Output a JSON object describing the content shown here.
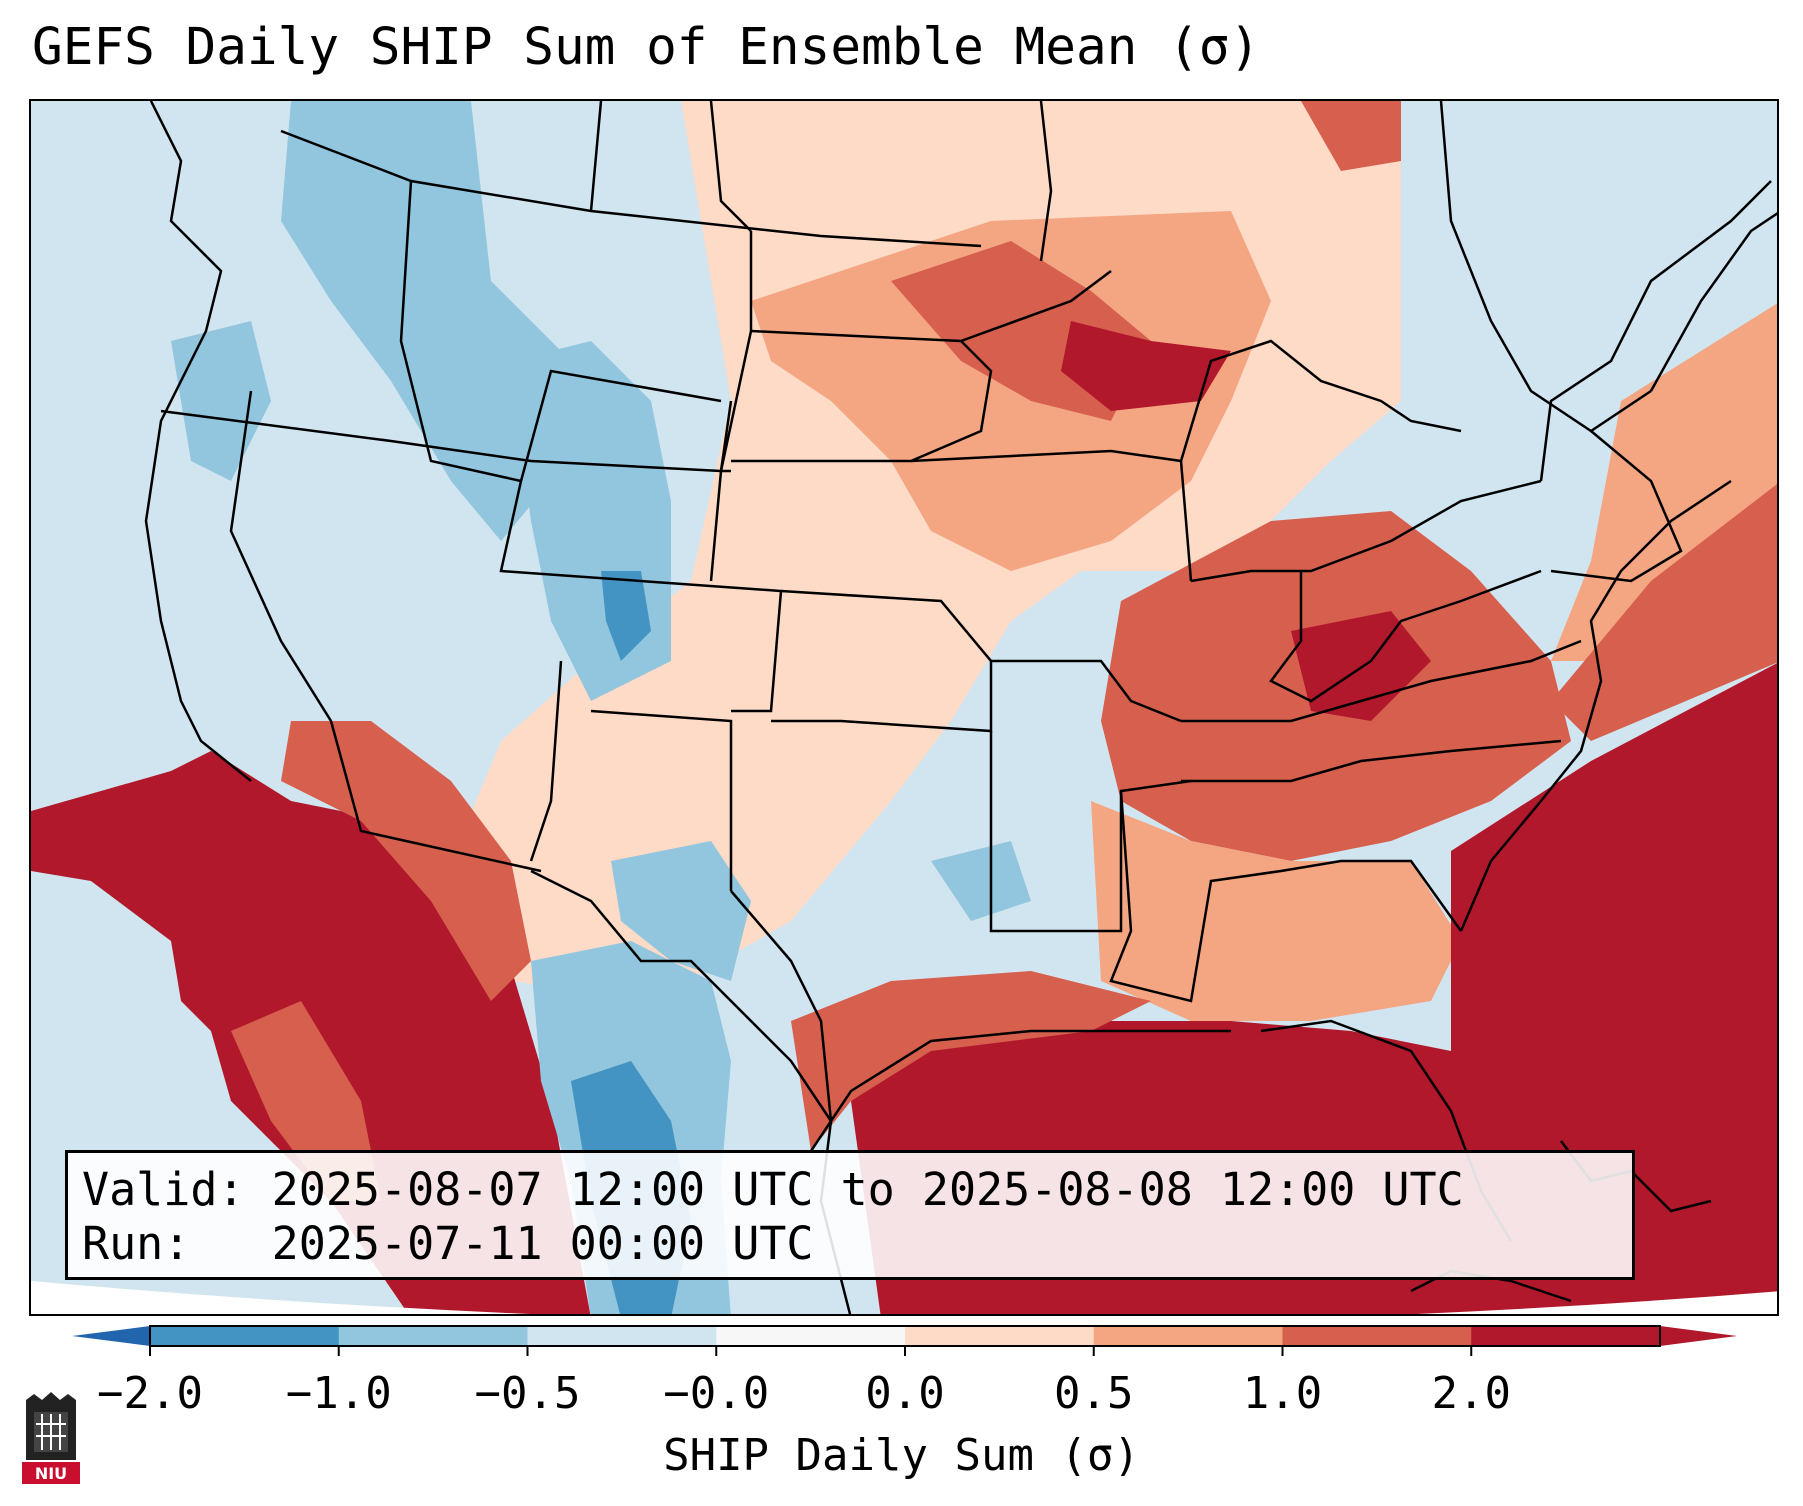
{
  "title": "GEFS Daily SHIP Sum of Ensemble Mean (σ)",
  "info": {
    "valid_line": "Valid: 2025-08-07 12:00 UTC to 2025-08-08 12:00 UTC",
    "run_line": "Run:   2025-07-11 00:00 UTC"
  },
  "colorbar": {
    "label": "SHIP Daily Sum (σ)",
    "ticks": [
      "−2.0",
      "−1.0",
      "−0.5",
      "−0.0",
      "0.0",
      "0.5",
      "1.0",
      "2.0"
    ],
    "colors": [
      "#4393c3",
      "#92c5de",
      "#d1e5f0",
      "#f7f7f7",
      "#fddbc7",
      "#f4a582",
      "#d6604d",
      "#b2182b"
    ],
    "extend_low_color": "#2166ac",
    "extend_high_color": "#b2182b"
  },
  "logo": {
    "text": "NIU",
    "color": "#c8102e"
  }
}
